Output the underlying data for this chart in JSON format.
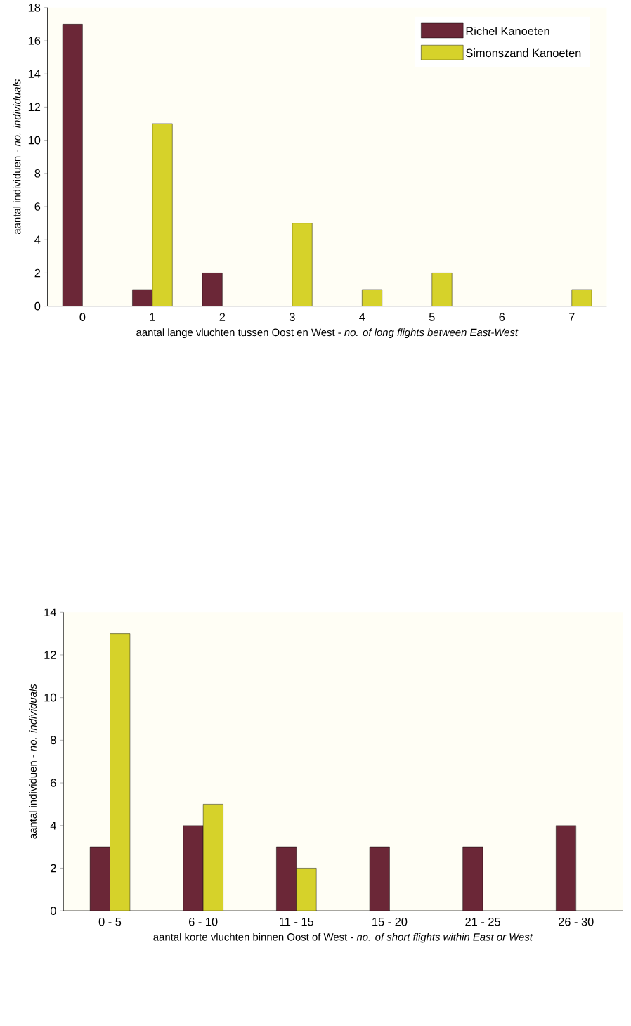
{
  "chart_data": [
    {
      "type": "bar",
      "categories": [
        "0",
        "1",
        "2",
        "3",
        "4",
        "5",
        "6",
        "7"
      ],
      "xlabel": "aantal lange vluchten tussen Oost en West - *no. of long flights between East-West*",
      "ylabel": "aantal individuen - *no. individuals*",
      "ylim": [
        0,
        18
      ],
      "yticks": [
        0,
        2,
        4,
        6,
        8,
        10,
        12,
        14,
        16,
        18
      ],
      "grid": false,
      "legend": "top right",
      "series": [
        {
          "name": "Richel Kanoeten",
          "color": "#6b2737",
          "values": [
            17,
            1,
            2,
            null,
            null,
            null,
            null,
            null
          ]
        },
        {
          "name": "Simonszand Kanoeten",
          "color": "#d6d22a",
          "values": [
            null,
            11,
            null,
            5,
            1,
            2,
            null,
            1
          ]
        }
      ]
    },
    {
      "type": "bar",
      "categories": [
        "0 - 5",
        "6 - 10",
        "11 - 15",
        "15 - 20",
        "21 - 25",
        "26 - 30"
      ],
      "xlabel": "aantal korte vluchten binnen Oost of West - *no. of short flights within East or West*",
      "ylabel": "aantal individuen - *no. individuals*",
      "ylim": [
        0,
        14
      ],
      "yticks": [
        0,
        2,
        4,
        6,
        8,
        10,
        12,
        14
      ],
      "grid": false,
      "legend": false,
      "series": [
        {
          "color": "#6b2737",
          "values": [
            3,
            4,
            3,
            3,
            3,
            4
          ]
        },
        {
          "color": "#d6d22a",
          "values": [
            13,
            5,
            2,
            null,
            null,
            null
          ]
        }
      ]
    }
  ]
}
